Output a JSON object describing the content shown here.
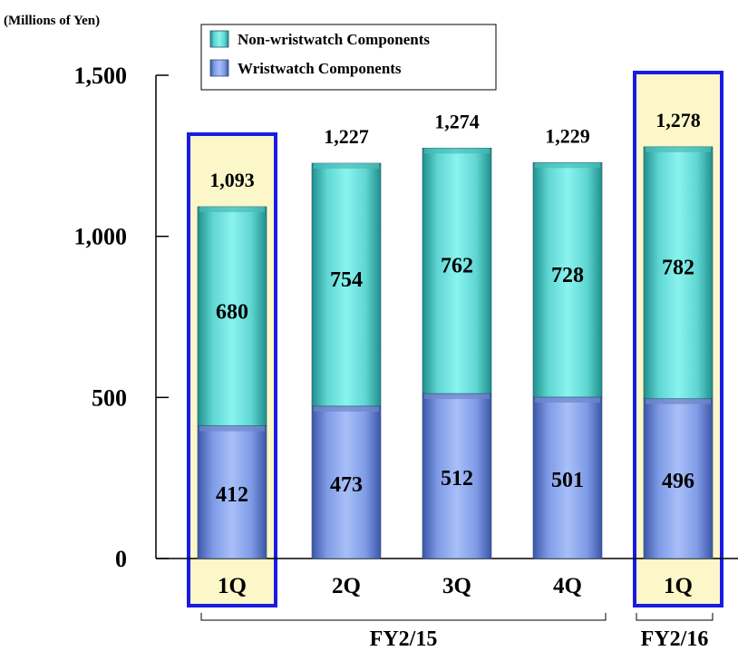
{
  "chart_data": {
    "type": "bar",
    "stacked": true,
    "unit_label": "(Millions of Yen)",
    "categories": [
      "1Q",
      "2Q",
      "3Q",
      "4Q",
      "1Q"
    ],
    "groups": [
      {
        "label": "FY2/15",
        "categories": [
          0,
          1,
          2,
          3
        ]
      },
      {
        "label": "FY2/16",
        "categories": [
          4
        ]
      }
    ],
    "highlighted_categories": [
      0,
      4
    ],
    "series": [
      {
        "name": "Wristwatch Components",
        "values": [
          412,
          473,
          512,
          501,
          496
        ]
      },
      {
        "name": "Non-wristwatch Components",
        "values": [
          680,
          754,
          762,
          728,
          782
        ]
      }
    ],
    "totals": [
      "1,093",
      "1,227",
      "1,274",
      "1,229",
      "1,278"
    ],
    "value_labels": [
      [
        "412",
        "473",
        "512",
        "501",
        "496"
      ],
      [
        "680",
        "754",
        "762",
        "728",
        "782"
      ]
    ],
    "ylim": [
      0,
      1500
    ],
    "yticks": [
      0,
      500,
      1000,
      1500
    ],
    "ytick_labels": [
      "0",
      "500",
      "1,000",
      "1,500"
    ],
    "legend": [
      {
        "label": "Non-wristwatch Components",
        "series": 1
      },
      {
        "label": "Wristwatch Components",
        "series": 0
      }
    ],
    "legend_position": "top",
    "grid": false,
    "colors": {
      "wristwatch": "#8aa6ee",
      "non_wristwatch": "#66e0dc",
      "highlight_fill": "#fbf7c8",
      "highlight_border": "#1a1ae6"
    }
  }
}
